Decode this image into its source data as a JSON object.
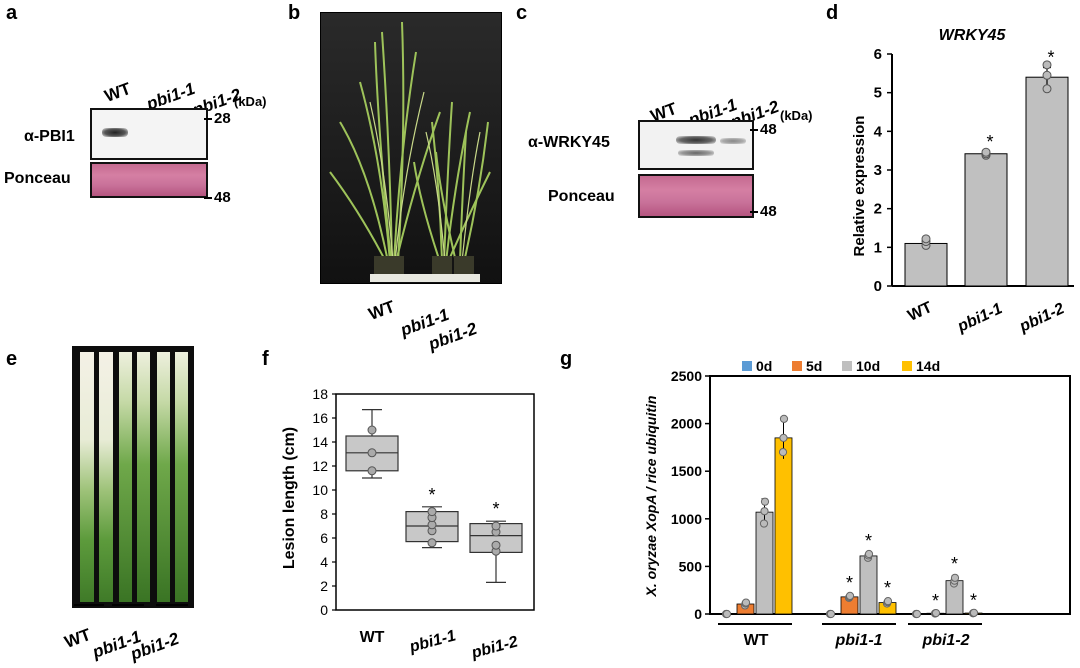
{
  "panels": {
    "a": "a",
    "b": "b",
    "c": "c",
    "d": "d",
    "e": "e",
    "f": "f",
    "g": "g"
  },
  "a": {
    "lanes": [
      "WT",
      "pbi1-1",
      "pbi1-2"
    ],
    "kda": "(kDa)",
    "rows": [
      "α-PBI1",
      "Ponceau"
    ],
    "markers": [
      "28",
      "48"
    ]
  },
  "b": {
    "labels": [
      "WT",
      "pbi1-1",
      "pbi1-2"
    ]
  },
  "c": {
    "lanes": [
      "WT",
      "pbi1-1",
      "pbi1-2"
    ],
    "kda": "(kDa)",
    "rows": [
      "α-WRKY45",
      "Ponceau"
    ],
    "markers": [
      "48",
      "48"
    ]
  },
  "e": {
    "labels": [
      "WT",
      "pbi1-1",
      "pbi1-2"
    ]
  },
  "sig": "*",
  "chart_data": [
    {
      "panel": "d",
      "type": "bar",
      "title": "WRKY45",
      "ylabel": "Relative expression",
      "categories": [
        "WT",
        "pbi1-1",
        "pbi1-2"
      ],
      "values": [
        1.1,
        3.42,
        5.4
      ],
      "errors": [
        0.12,
        0.05,
        0.25
      ],
      "points": [
        [
          1.05,
          1.15,
          1.22
        ],
        [
          3.38,
          3.42,
          3.46
        ],
        [
          5.1,
          5.45,
          5.72
        ]
      ],
      "significant": [
        false,
        true,
        true
      ],
      "ylim": [
        0,
        6
      ],
      "yticks": [
        0,
        1,
        2,
        3,
        4,
        5,
        6
      ],
      "color": "#c0c0c0"
    },
    {
      "panel": "f",
      "type": "box",
      "ylabel": "Lesion length (cm)",
      "categories": [
        "WT",
        "pbi1-1",
        "pbi1-2"
      ],
      "boxes": [
        {
          "min": 11.0,
          "q1": 11.6,
          "median": 13.1,
          "q3": 14.5,
          "max": 16.7,
          "points": [
            11.6,
            13.1,
            15.0
          ]
        },
        {
          "min": 5.2,
          "q1": 5.7,
          "median": 7.0,
          "q3": 8.2,
          "max": 8.6,
          "points": [
            5.6,
            6.6,
            7.1,
            7.7,
            8.2
          ]
        },
        {
          "min": 2.3,
          "q1": 4.8,
          "median": 6.2,
          "q3": 7.2,
          "max": 7.4,
          "points": [
            4.9,
            5.4,
            6.5,
            7.0
          ]
        }
      ],
      "significant": [
        false,
        true,
        true
      ],
      "ylim": [
        0,
        18
      ],
      "yticks": [
        0,
        2,
        4,
        6,
        8,
        10,
        12,
        14,
        16,
        18
      ],
      "color": "#c8c8c8"
    },
    {
      "panel": "g",
      "type": "bar",
      "ylabel": "X. oryzae XopA / rice ubiquitin",
      "categories": [
        "WT",
        "pbi1-1",
        "pbi1-2"
      ],
      "series": [
        {
          "name": "0d",
          "color": "#5b9bd5",
          "values": [
            0,
            0,
            0
          ],
          "errors": [
            0,
            0,
            0
          ],
          "significant": [
            false,
            false,
            false
          ]
        },
        {
          "name": "5d",
          "color": "#ed7d31",
          "values": [
            105,
            180,
            8
          ],
          "errors": [
            15,
            20,
            3
          ],
          "significant": [
            false,
            true,
            true
          ]
        },
        {
          "name": "10d",
          "color": "#bfbfbf",
          "values": [
            1070,
            610,
            350
          ],
          "errors": [
            140,
            30,
            50
          ],
          "significant": [
            false,
            true,
            true
          ]
        },
        {
          "name": "14d",
          "color": "#ffc000",
          "values": [
            1850,
            120,
            10
          ],
          "errors": [
            220,
            25,
            4
          ],
          "significant": [
            false,
            true,
            true
          ]
        }
      ],
      "points": [
        [
          [
            0,
            0,
            0
          ],
          [
            90,
            110,
            120
          ],
          [
            950,
            1080,
            1180
          ],
          [
            1700,
            1850,
            2050
          ]
        ],
        [
          [
            0,
            0,
            0
          ],
          [
            170,
            180,
            190
          ],
          [
            590,
            615,
            630
          ],
          [
            110,
            125,
            135
          ]
        ],
        [
          [
            0,
            0,
            0
          ],
          [
            5,
            8,
            10
          ],
          [
            320,
            350,
            380
          ],
          [
            8,
            10,
            12
          ]
        ]
      ],
      "ylim": [
        0,
        2500
      ],
      "yticks": [
        0,
        500,
        1000,
        1500,
        2000,
        2500
      ]
    }
  ]
}
